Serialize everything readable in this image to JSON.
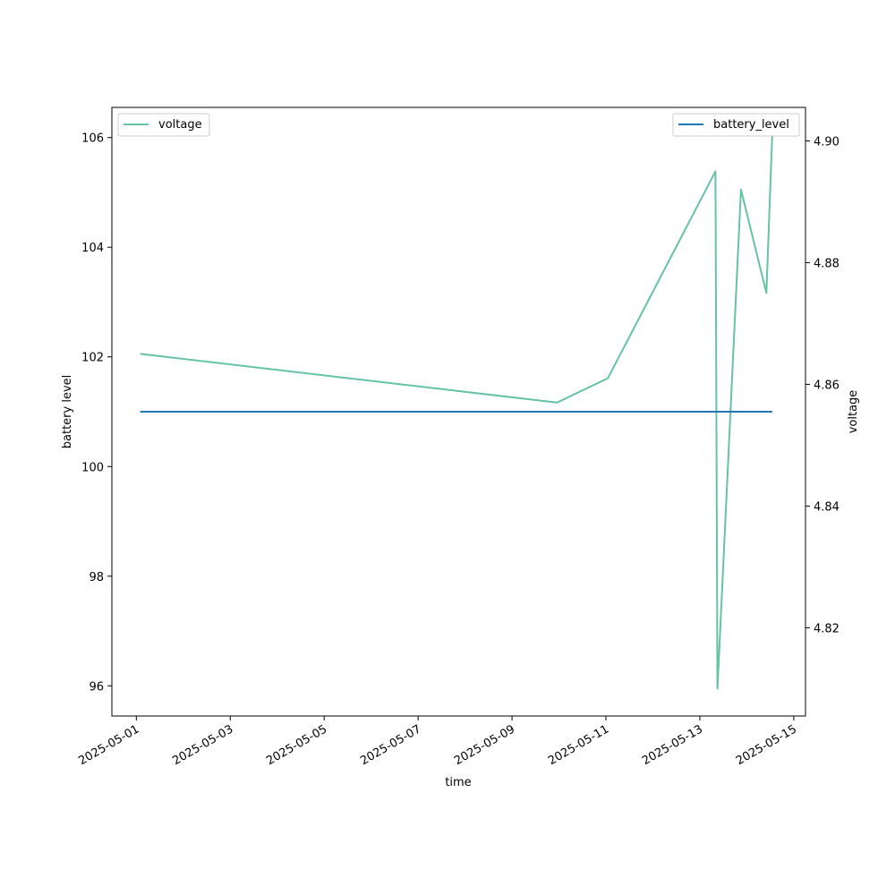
{
  "chart_data": {
    "type": "line",
    "xlabel": "time",
    "x_ticks": [
      "2025-05-01",
      "2025-05-03",
      "2025-05-05",
      "2025-05-07",
      "2025-05-09",
      "2025-05-11",
      "2025-05-13",
      "2025-05-15"
    ],
    "xlim": [
      "2025-04-30T11:30",
      "2025-05-15T06:00"
    ],
    "y_left": {
      "label": "battery level",
      "lim": [
        95.45,
        106.55
      ],
      "ticks": [
        96,
        98,
        100,
        102,
        104,
        106
      ]
    },
    "y_right": {
      "label": "voltage",
      "lim": [
        4.8055,
        4.9055
      ],
      "ticks": [
        4.82,
        4.84,
        4.86,
        4.88,
        4.9
      ]
    },
    "series": [
      {
        "name": "voltage",
        "axis": "right",
        "color": "#66c2a5",
        "x": [
          "2025-05-01T02:00",
          "2025-05-09T23:00",
          "2025-05-11T01:00",
          "2025-05-13T08:00",
          "2025-05-13T09:00",
          "2025-05-13T21:00",
          "2025-05-14T10:00",
          "2025-05-14T13:00"
        ],
        "values": [
          4.865,
          4.857,
          4.861,
          4.895,
          4.81,
          4.892,
          4.875,
          4.901
        ]
      },
      {
        "name": "battery_level",
        "axis": "left",
        "color": "#1f77b4",
        "x": [
          "2025-05-01T02:00",
          "2025-05-14T13:00"
        ],
        "values": [
          101,
          101
        ]
      }
    ],
    "legend": [
      {
        "label": "voltage",
        "placement": "upper-left",
        "color": "#66c2a5"
      },
      {
        "label": "battery_level",
        "placement": "upper-right",
        "color": "#1f77b4"
      }
    ],
    "grid": false
  }
}
